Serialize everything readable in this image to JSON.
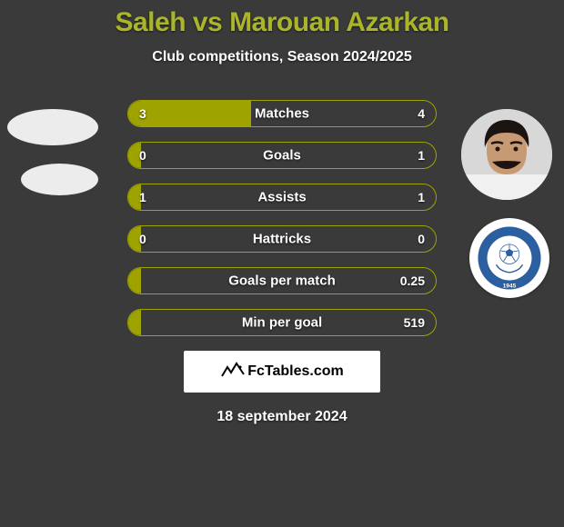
{
  "background_color": "#3a3a3a",
  "title": "Saleh vs Marouan Azarkan",
  "title_color": "#aab52a",
  "subtitle": "Club competitions, Season 2024/2025",
  "left_player": {
    "name": "Saleh",
    "avatar_placeholder_color": "#ececec",
    "club_badge_visible": false
  },
  "right_player": {
    "name": "Marouan Azarkan",
    "avatar_skin": "#c79a74",
    "avatar_hair": "#1b1410",
    "avatar_shirt": "#f0f0f0",
    "club": {
      "name": "Al-Nasr",
      "year": "1945",
      "ring_color": "#2c5fa0",
      "inner_color": "#ffffff",
      "text_color": "#2c5fa0"
    }
  },
  "bars": {
    "border_color": "#9ea300",
    "left_fill_color": "#9ea300",
    "right_fill_color": "transparent",
    "rows": [
      {
        "label": "Matches",
        "left": "3",
        "right": "4",
        "left_pct": 40,
        "right_pct": 0
      },
      {
        "label": "Goals",
        "left": "0",
        "right": "1",
        "left_pct": 4,
        "right_pct": 0
      },
      {
        "label": "Assists",
        "left": "1",
        "right": "1",
        "left_pct": 4,
        "right_pct": 0
      },
      {
        "label": "Hattricks",
        "left": "0",
        "right": "0",
        "left_pct": 4,
        "right_pct": 0
      },
      {
        "label": "Goals per match",
        "left": "",
        "right": "0.25",
        "left_pct": 4,
        "right_pct": 0
      },
      {
        "label": "Min per goal",
        "left": "",
        "right": "519",
        "left_pct": 4,
        "right_pct": 0
      }
    ]
  },
  "attribution": {
    "text": "FcTables.com",
    "logo_color": "#000000"
  },
  "date": "18 september 2024"
}
